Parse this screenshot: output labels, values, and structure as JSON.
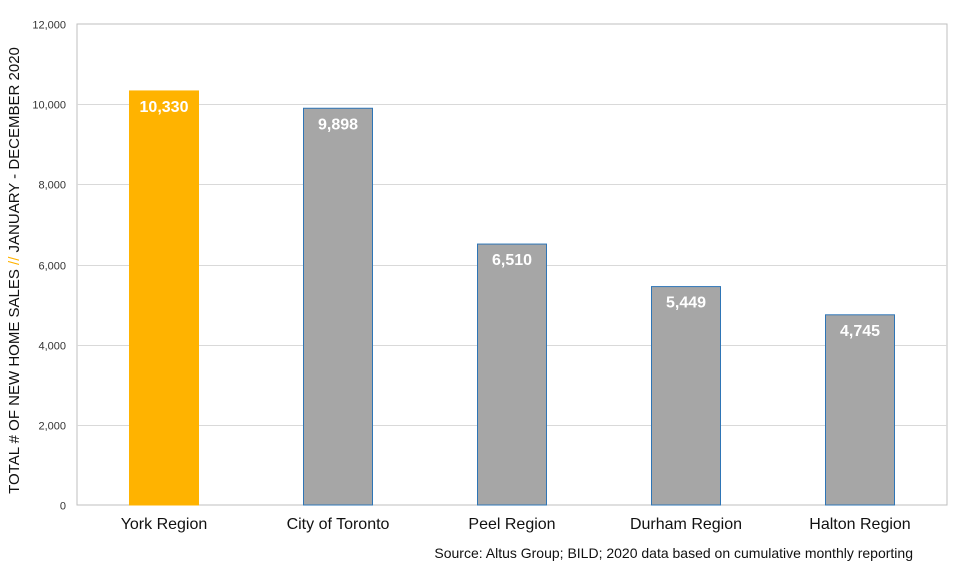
{
  "chart_data": {
    "type": "bar",
    "categories": [
      "York Region",
      "City of Toronto",
      "Peel Region",
      "Durham Region",
      "Halton Region"
    ],
    "values": [
      10330,
      9898,
      6510,
      5449,
      4745
    ],
    "data_labels": [
      "10,330",
      "9,898",
      "6,510",
      "5,449",
      "4,745"
    ],
    "highlight_index": 0,
    "ylim": [
      0,
      12000
    ],
    "yticks": [
      0,
      2000,
      4000,
      6000,
      8000,
      10000,
      12000
    ],
    "ytick_labels": [
      "0",
      "2,000",
      "4,000",
      "6,000",
      "8,000",
      "10,000",
      "12,000"
    ],
    "ylabel_parts": [
      "TOTAL # OF NEW HOME SALES ",
      "//",
      " JANUARY - DECEMBER 2020"
    ],
    "xlabel": "",
    "grid": true,
    "legend": "none",
    "source": "Source: Altus Group; BILD; 2020 data based on cumulative monthly reporting",
    "colors": {
      "highlight": "#FFB300",
      "bar": "#A6A6A6",
      "bar_border": "#2E75B6",
      "slash": "#FFB300",
      "grid": "#D9D9D9",
      "frame": "#BFBFBF"
    }
  }
}
